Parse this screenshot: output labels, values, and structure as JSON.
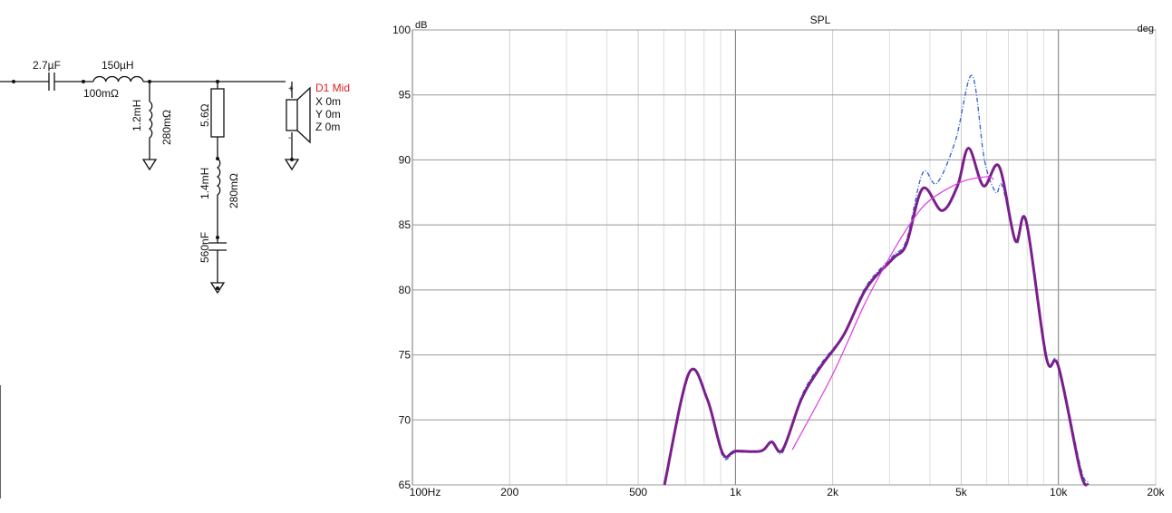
{
  "circuit": {
    "components": [
      "2.7µF",
      "150µH",
      "100mΩ",
      "1.2mH",
      "280mΩ",
      "5.6Ω",
      "1.4mH",
      "280mΩ",
      "560nF"
    ],
    "driver": {
      "name": "D1 Mid",
      "x": "X 0m",
      "y": "Y 0m",
      "z": "Z 0m"
    }
  },
  "chart_data": {
    "type": "line",
    "title": "SPL",
    "ylabel": "dB",
    "y2label": "deg",
    "xscale": "log",
    "xlim": [
      100,
      20000
    ],
    "ylim": [
      65,
      100
    ],
    "xticks": [
      {
        "value": 100,
        "label": "100Hz"
      },
      200,
      500,
      {
        "value": 1000,
        "label": "1k"
      },
      {
        "value": 2000,
        "label": "2k"
      },
      {
        "value": 5000,
        "label": "5k"
      },
      {
        "value": 10000,
        "label": "10k"
      },
      {
        "value": 20000,
        "label": "20k"
      }
    ],
    "xminor": [
      300,
      400,
      600,
      700,
      800,
      900,
      3000,
      4000,
      6000,
      7000,
      8000,
      9000
    ],
    "yticks": [
      65,
      70,
      75,
      80,
      85,
      90,
      95,
      100
    ],
    "grid": true,
    "series": [
      {
        "name": "Blue",
        "color": "#2f5fd0",
        "dash": true,
        "width": 1.3,
        "x": [
          603,
          718,
          818,
          914,
          1000,
          1198,
          1293,
          1400,
          1600,
          1838,
          2160,
          2540,
          3070,
          3380,
          3800,
          4200,
          4800,
          5400,
          5900,
          6400,
          6700,
          7400,
          7940,
          9170,
          10000,
          11700,
          12350
        ],
        "values": [
          65,
          73.6,
          71.6,
          67.2,
          67.5,
          67.6,
          68.4,
          67.5,
          71.8,
          74.3,
          76.6,
          80.3,
          82.6,
          83.8,
          89.0,
          88.2,
          91.5,
          96.5,
          90.0,
          87.5,
          88.0,
          83.6,
          85.2,
          74.9,
          74.3,
          66.4,
          65.2
        ]
      },
      {
        "name": "Purple",
        "color": "#7a1e8c",
        "dash": false,
        "width": 3,
        "x": [
          603,
          718,
          818,
          914,
          1000,
          1198,
          1293,
          1400,
          1600,
          1838,
          2160,
          2540,
          3070,
          3380,
          3800,
          4360,
          4870,
          5270,
          5860,
          6550,
          7350,
          7940,
          9170,
          10000,
          11700,
          12350
        ],
        "values": [
          65,
          73.6,
          71.6,
          67.4,
          67.6,
          67.6,
          68.3,
          67.7,
          71.6,
          74.1,
          76.5,
          80.1,
          82.4,
          83.5,
          87.8,
          86.1,
          88.0,
          90.9,
          88.0,
          89.5,
          83.8,
          85.3,
          74.8,
          74.1,
          66.0,
          65
        ]
      },
      {
        "name": "Magenta",
        "color": "#e03ae0",
        "dash": false,
        "width": 1.2,
        "x": [
          1500,
          2000,
          2500,
          3000,
          3500,
          4000,
          5000,
          6000,
          6300
        ],
        "values": [
          67.7,
          73.5,
          78.8,
          82.5,
          85.2,
          86.9,
          88.3,
          88.7,
          88.5
        ]
      }
    ]
  }
}
